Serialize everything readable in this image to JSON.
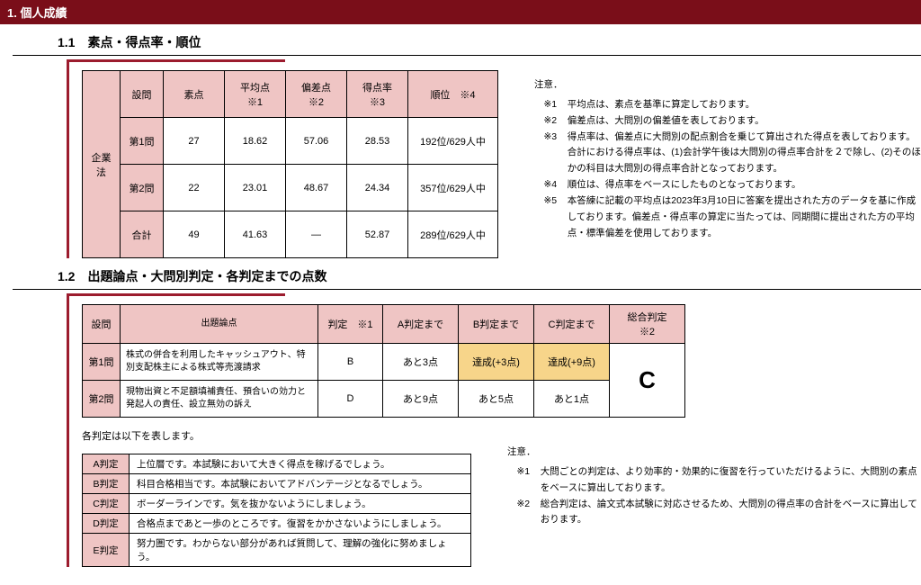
{
  "section_header": "1. 個人成績",
  "s1": {
    "title": "1.1　素点・得点率・順位",
    "subject": "企業法",
    "headers": [
      "設問",
      "素点",
      "平均点　※1",
      "偏差点　※2",
      "得点率　※3",
      "順位　※4"
    ],
    "rows": [
      {
        "q": "第1問",
        "raw": "27",
        "avg": "18.62",
        "dev": "57.06",
        "rate": "28.53",
        "rank": "192位/629人中"
      },
      {
        "q": "第2問",
        "raw": "22",
        "avg": "23.01",
        "dev": "48.67",
        "rate": "24.34",
        "rank": "357位/629人中"
      },
      {
        "q": "合計",
        "raw": "49",
        "avg": "41.63",
        "dev": "—",
        "rate": "52.87",
        "rank": "289位/629人中"
      }
    ],
    "notes_title": "注意．",
    "notes": [
      {
        "m": "※1",
        "t": "平均点は、素点を基準に算定しております。"
      },
      {
        "m": "※2",
        "t": "偏差点は、大問別の偏差値を表しております。"
      },
      {
        "m": "※3",
        "t": "得点率は、偏差点に大問別の配点割合を乗じて算出された得点を表しております。合計における得点率は、(1)会計学午後は大問別の得点率合計を２で除し、(2)そのほかの科目は大問別の得点率合計となっております。"
      },
      {
        "m": "※4",
        "t": "順位は、得点率をベースにしたものとなっております。"
      },
      {
        "m": "※5",
        "t": "本答練に記載の平均点は2023年3月10日に答案を提出された方のデータを基に作成しております。偏差点・得点率の算定に当たっては、同期間に提出された方の平均点・標準偏差を使用しております。"
      }
    ]
  },
  "s2": {
    "title": "1.2　出題論点・大問別判定・各判定までの点数",
    "headers": [
      "設問",
      "出題論点",
      "判定　※1",
      "A判定まで",
      "B判定まで",
      "C判定まで",
      "総合判定　※2"
    ],
    "rows": [
      {
        "q": "第1問",
        "topic": "株式の併合を利用したキャッシュアウト、特別支配株主による株式等売渡請求",
        "j": "B",
        "a": "あと3点",
        "b": "達成(+3点)",
        "b_ach": true,
        "c": "達成(+9点)",
        "c_ach": true
      },
      {
        "q": "第2問",
        "topic": "現物出資と不足額填補責任、預合いの効力と発起人の責任、設立無効の訴え",
        "j": "D",
        "a": "あと9点",
        "b": "あと5点",
        "b_ach": false,
        "c": "あと1点",
        "c_ach": false
      }
    ],
    "overall": "C",
    "legend_title": "各判定は以下を表します。",
    "legend": [
      {
        "l": "A判定",
        "d": "上位層です。本試験において大きく得点を稼げるでしょう。"
      },
      {
        "l": "B判定",
        "d": "科目合格相当です。本試験においてアドバンテージとなるでしょう。"
      },
      {
        "l": "C判定",
        "d": "ボーダーラインです。気を抜かないようにしましょう。"
      },
      {
        "l": "D判定",
        "d": "合格点まであと一歩のところです。復習をかかさないようにしましょう。"
      },
      {
        "l": "E判定",
        "d": "努力圏です。わからない部分があれば質問して、理解の強化に努めましょう。"
      }
    ],
    "notes_title": "注意．",
    "notes": [
      {
        "m": "※1",
        "t": "大問ごとの判定は、より効率的・効果的に復習を行っていただけるように、大問別の素点をベースに算出しております。"
      },
      {
        "m": "※2",
        "t": "総合判定は、論文式本試験に対応させるため、大問別の得点率の合計をベースに算出しております。"
      }
    ]
  },
  "colors": {
    "header_bg": "#7a0e19",
    "accent_border": "#9c1c2e",
    "cell_header_bg": "#efc5c4",
    "achieved_bg": "#f7d58a"
  }
}
